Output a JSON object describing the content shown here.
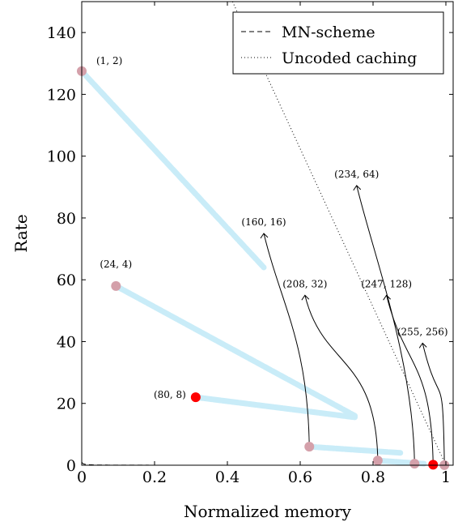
{
  "chart_data": {
    "type": "scatter",
    "xlabel": "Normalized memory",
    "ylabel": "Rate",
    "xlim": [
      0,
      1.02
    ],
    "ylim": [
      0,
      150
    ],
    "xticks": [
      0,
      0.2,
      0.4,
      0.6,
      0.8,
      1
    ],
    "xtick_labels": [
      "0",
      "0.2",
      "0.4",
      "0.6",
      "0.8",
      "1"
    ],
    "yticks": [
      0,
      20,
      40,
      60,
      80,
      100,
      120,
      140
    ],
    "ytick_labels": [
      "0",
      "20",
      "40",
      "60",
      "80",
      "100",
      "120",
      "140"
    ],
    "legend": {
      "placement": "top-right",
      "entries": [
        {
          "label": "MN-scheme",
          "style": "dashed"
        },
        {
          "label": "Uncoded caching",
          "style": "dotted"
        }
      ]
    },
    "curves": [
      {
        "name": "MN-scheme",
        "style": "dashed",
        "formula": "(1-M)/(1+255M)"
      },
      {
        "name": "Uncoded caching",
        "style": "dotted",
        "formula": "256(1-M)"
      }
    ],
    "segments": [
      {
        "from": [
          0.0,
          127.5
        ],
        "to": [
          0.5,
          64
        ]
      },
      {
        "from": [
          0.094,
          58
        ],
        "to": [
          0.75,
          16
        ]
      },
      {
        "from": [
          0.313,
          22
        ],
        "to": [
          0.75,
          15.5
        ]
      },
      {
        "from": [
          0.625,
          6
        ],
        "to": [
          0.875,
          4
        ]
      },
      {
        "from": [
          0.813,
          1.5
        ],
        "to": [
          0.94,
          0.5
        ]
      }
    ],
    "points": [
      {
        "label": "(1, 2)",
        "x": 0.0,
        "y": 127.5,
        "color": "#d4a0aa"
      },
      {
        "label": "(24, 4)",
        "x": 0.094,
        "y": 58,
        "color": "#d4a0aa"
      },
      {
        "label": "(80, 8)",
        "x": 0.313,
        "y": 22,
        "color": "#ff0000"
      },
      {
        "label": "(160, 16)",
        "x": 0.625,
        "y": 6,
        "color": "#d4a0aa"
      },
      {
        "label": "(208, 32)",
        "x": 0.813,
        "y": 1.5,
        "color": "#d4a0aa"
      },
      {
        "label": "(234, 64)",
        "x": 0.914,
        "y": 0.5,
        "color": "#d4a0aa"
      },
      {
        "label": "(247, 128)",
        "x": 0.965,
        "y": 0.15,
        "color": "#ff0000"
      },
      {
        "label": "(255, 256)",
        "x": 0.996,
        "y": 0.02,
        "color": "#d4a0aa"
      }
    ],
    "colors": {
      "segment": "#c9ecf8",
      "pink": "#d4a0aa",
      "red": "#ff0000"
    }
  }
}
